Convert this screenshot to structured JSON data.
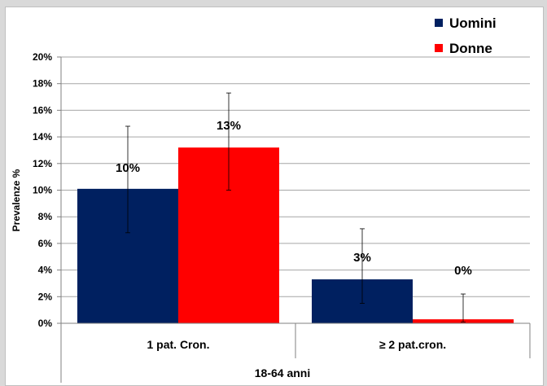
{
  "chart_data": {
    "type": "bar",
    "categories": [
      "1 pat. Cron.",
      "≥ 2 pat.cron."
    ],
    "group_label": "18-64 anni",
    "ylabel": "Prevalenze %",
    "ylim": [
      0,
      20
    ],
    "yticks": [
      0,
      2,
      4,
      6,
      8,
      10,
      12,
      14,
      16,
      18,
      20
    ],
    "ytick_labels": [
      "0%",
      "2%",
      "4%",
      "6%",
      "8%",
      "10%",
      "12%",
      "14%",
      "16%",
      "18%",
      "20%"
    ],
    "grid": true,
    "legend_position": "top-right",
    "series": [
      {
        "name": "Uomini",
        "color": "#002060",
        "values": [
          10.1,
          3.3
        ],
        "labels": [
          "10%",
          "3%"
        ],
        "error_low": [
          6.8,
          1.5
        ],
        "error_high": [
          14.8,
          7.1
        ]
      },
      {
        "name": "Donne",
        "color": "#ff0000",
        "values": [
          13.2,
          0.3
        ],
        "labels": [
          "13%",
          "0%"
        ],
        "error_low": [
          10.0,
          0.1
        ],
        "error_high": [
          17.3,
          2.2
        ]
      }
    ]
  }
}
